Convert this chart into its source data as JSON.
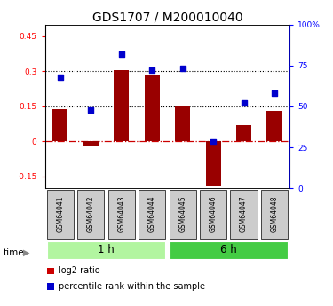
{
  "title": "GDS1707 / M200010040",
  "samples": [
    "GSM64041",
    "GSM64042",
    "GSM64043",
    "GSM64044",
    "GSM64045",
    "GSM64046",
    "GSM64047",
    "GSM64048"
  ],
  "log2_ratio": [
    0.14,
    -0.02,
    0.305,
    0.285,
    0.148,
    -0.19,
    0.07,
    0.13
  ],
  "percentile_rank": [
    68,
    48,
    82,
    72,
    73,
    28,
    52,
    58
  ],
  "groups": [
    {
      "label": "1 h",
      "indices": [
        0,
        1,
        2,
        3
      ],
      "color": "#b2f5a0"
    },
    {
      "label": "6 h",
      "indices": [
        4,
        5,
        6,
        7
      ],
      "color": "#44cc44"
    }
  ],
  "left_ylim": [
    -0.2,
    0.5
  ],
  "right_ylim": [
    0,
    100
  ],
  "left_yticks": [
    -0.15,
    0.0,
    0.15,
    0.3,
    0.45
  ],
  "right_yticks": [
    0,
    25,
    50,
    75,
    100
  ],
  "left_ytick_labels": [
    "-0.15",
    "0",
    "0.15",
    "0.3",
    "0.45"
  ],
  "right_ytick_labels": [
    "0",
    "25",
    "50",
    "75",
    "100%"
  ],
  "hlines": [
    0.15,
    0.3
  ],
  "bar_color": "#990000",
  "scatter_color": "#0000cc",
  "zero_line_color": "#cc0000",
  "bar_width": 0.5,
  "legend_items": [
    {
      "color": "#cc0000",
      "label": "log2 ratio"
    },
    {
      "color": "#0000cc",
      "label": "percentile rank within the sample"
    }
  ],
  "time_label": "time",
  "title_fontsize": 10
}
